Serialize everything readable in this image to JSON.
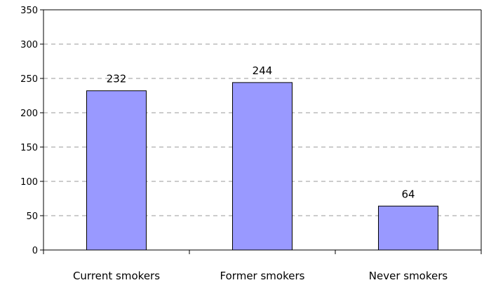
{
  "chart_data": {
    "type": "bar",
    "title": "",
    "xlabel": "",
    "ylabel": "",
    "categories": [
      "Current smokers",
      "Former smokers",
      "Never smokers"
    ],
    "values": [
      232,
      244,
      64
    ],
    "data_labels": [
      "232",
      "244",
      "64"
    ],
    "ylim": [
      0,
      350
    ],
    "yticks": [
      0,
      50,
      100,
      150,
      200,
      250,
      300,
      350
    ],
    "ytick_labels": [
      "0",
      "50",
      "100",
      "150",
      "200",
      "250",
      "300",
      "350"
    ],
    "grid": "horizontal dashed",
    "legend": "none",
    "colors": {
      "bar_fill": "#9999ff",
      "bar_stroke": "#000000",
      "grid": "#999999",
      "axis": "#000000"
    }
  }
}
